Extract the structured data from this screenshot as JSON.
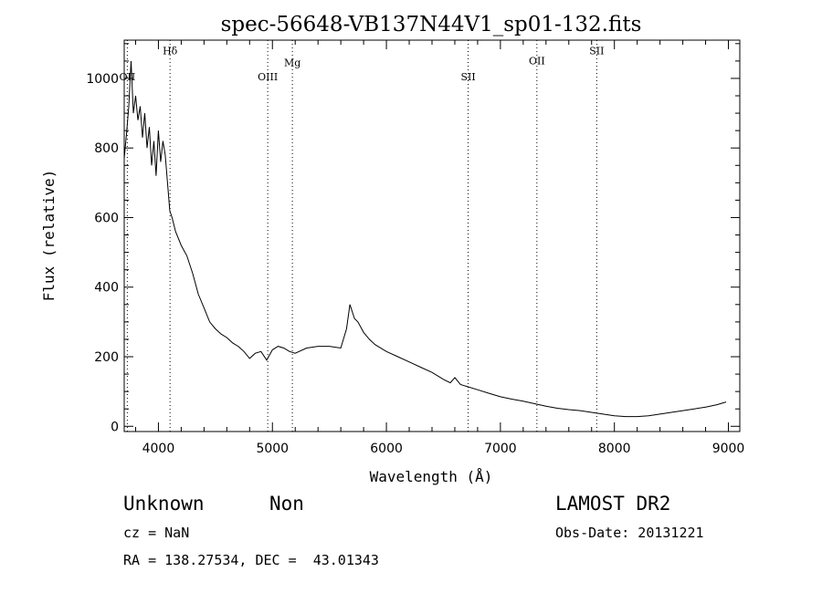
{
  "chart_data": {
    "type": "line",
    "title": "spec-56648-VB137N44V1_sp01-132.fits",
    "xlabel": "Wavelength (Å)",
    "ylabel": "Flux (relative)",
    "xlim": [
      3700,
      9100
    ],
    "ylim": [
      -15,
      1110
    ],
    "xticks": [
      {
        "value": 4000,
        "label": "4000"
      },
      {
        "value": 5000,
        "label": "5000"
      },
      {
        "value": 6000,
        "label": "6000"
      },
      {
        "value": 7000,
        "label": "7000"
      },
      {
        "value": 8000,
        "label": "8000"
      },
      {
        "value": 9000,
        "label": "9000"
      }
    ],
    "yticks": [
      {
        "value": 0,
        "label": "0"
      },
      {
        "value": 200,
        "label": "200"
      },
      {
        "value": 400,
        "label": "400"
      },
      {
        "value": 600,
        "label": "600"
      },
      {
        "value": 800,
        "label": "800"
      },
      {
        "value": 1000,
        "label": "1000"
      }
    ],
    "grid": false,
    "line_color": "#000000",
    "marker_color": "#000000",
    "line_markers": [
      {
        "label": "OII",
        "wavelength": 3727,
        "label_flux": 995
      },
      {
        "label": "Hδ",
        "wavelength": 4102,
        "label_flux": 1070
      },
      {
        "label": "OIII",
        "wavelength": 4959,
        "label_flux": 995
      },
      {
        "label": "Mg",
        "wavelength": 5175,
        "label_flux": 1035
      },
      {
        "label": "SII",
        "wavelength": 6717,
        "label_flux": 995
      },
      {
        "label": "OII",
        "wavelength": 7320,
        "label_flux": 1040
      },
      {
        "label": "SII",
        "wavelength": 7845,
        "label_flux": 1070
      }
    ],
    "series": [
      {
        "x": [
          3700,
          3720,
          3740,
          3760,
          3780,
          3800,
          3820,
          3840,
          3860,
          3880,
          3900,
          3920,
          3940,
          3960,
          3980,
          4000,
          4020,
          4040,
          4060,
          4080,
          4100,
          4120,
          4150,
          4200,
          4250,
          4300,
          4350,
          4400,
          4450,
          4500,
          4550,
          4600,
          4650,
          4700,
          4750,
          4800,
          4850,
          4900,
          4950,
          5000,
          5050,
          5100,
          5150,
          5200,
          5300,
          5400,
          5500,
          5600,
          5650,
          5680,
          5700,
          5720,
          5750,
          5800,
          5850,
          5900,
          6000,
          6100,
          6200,
          6300,
          6400,
          6500,
          6560,
          6600,
          6650,
          6700,
          6800,
          6900,
          7000,
          7100,
          7200,
          7300,
          7400,
          7500,
          7600,
          7700,
          7800,
          7900,
          8000,
          8100,
          8200,
          8300,
          8400,
          8500,
          8600,
          8700,
          8800,
          8900,
          8980
        ],
        "y": [
          770,
          840,
          920,
          1050,
          900,
          950,
          880,
          920,
          830,
          900,
          800,
          860,
          750,
          820,
          720,
          850,
          760,
          820,
          780,
          700,
          620,
          600,
          560,
          520,
          490,
          440,
          380,
          340,
          300,
          280,
          265,
          255,
          240,
          230,
          215,
          195,
          210,
          215,
          190,
          220,
          230,
          225,
          215,
          210,
          225,
          230,
          230,
          225,
          280,
          350,
          330,
          310,
          300,
          270,
          250,
          235,
          215,
          200,
          185,
          170,
          155,
          135,
          125,
          140,
          120,
          115,
          105,
          95,
          85,
          78,
          72,
          65,
          58,
          52,
          48,
          45,
          40,
          35,
          30,
          28,
          28,
          30,
          35,
          40,
          45,
          50,
          55,
          62,
          70
        ]
      }
    ]
  },
  "info": {
    "class": "Unknown",
    "subclass": "Non",
    "survey": "LAMOST DR2",
    "cz": "cz = NaN",
    "obs_date": "Obs-Date: 20131221",
    "coords": "RA = 138.27534, DEC =  43.01343"
  }
}
